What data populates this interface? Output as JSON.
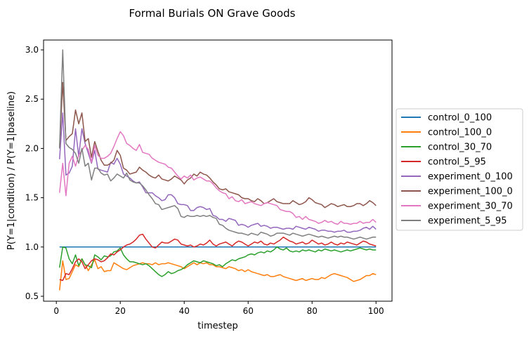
{
  "chart_data": {
    "type": "line",
    "title": "Formal Burials ON Grave Goods",
    "xlabel": "timestep",
    "ylabel": "P(Y=1|condition) / P(Y=1|baseline)",
    "xlim": [
      -4,
      105
    ],
    "ylim": [
      0.45,
      3.1
    ],
    "xticks": [
      0,
      20,
      40,
      60,
      80,
      100
    ],
    "yticks": [
      0.5,
      1.0,
      1.5,
      2.0,
      2.5,
      3.0
    ],
    "xtick_labels": [
      "0",
      "20",
      "40",
      "60",
      "80",
      "100"
    ],
    "ytick_labels": [
      "0.5",
      "1.0",
      "1.5",
      "2.0",
      "2.5",
      "3.0"
    ],
    "grid": false,
    "legend_position": "right, outside plot",
    "x": [
      1,
      2,
      3,
      4,
      5,
      6,
      7,
      8,
      9,
      10,
      11,
      12,
      13,
      14,
      15,
      16,
      17,
      18,
      19,
      20,
      21,
      22,
      23,
      24,
      25,
      26,
      27,
      28,
      29,
      30,
      31,
      32,
      33,
      34,
      35,
      36,
      37,
      38,
      39,
      40,
      41,
      42,
      43,
      44,
      45,
      46,
      47,
      48,
      49,
      50,
      51,
      52,
      53,
      54,
      55,
      56,
      57,
      58,
      59,
      60,
      61,
      62,
      63,
      64,
      65,
      66,
      67,
      68,
      69,
      70,
      71,
      72,
      73,
      74,
      75,
      76,
      77,
      78,
      79,
      80,
      81,
      82,
      83,
      84,
      85,
      86,
      87,
      88,
      89,
      90,
      91,
      92,
      93,
      94,
      95,
      96,
      97,
      98,
      99,
      100
    ],
    "series": [
      {
        "name": "control_0_100",
        "color": "#1f77b4",
        "values": [
          1.0,
          1.0,
          1.0,
          1.0,
          1.0,
          1.0,
          1.0,
          1.0,
          1.0,
          1.0,
          1.0,
          1.0,
          1.0,
          1.0,
          1.0,
          1.0,
          1.0,
          1.0,
          1.0,
          1.0,
          1.0,
          1.0,
          1.0,
          1.0,
          1.0,
          1.0,
          1.0,
          1.0,
          1.0,
          1.0,
          1.0,
          1.0,
          1.0,
          1.0,
          1.0,
          1.0,
          1.0,
          1.0,
          1.0,
          1.0,
          1.0,
          1.0,
          1.0,
          1.0,
          1.0,
          1.0,
          1.0,
          1.0,
          1.0,
          1.0,
          1.0,
          1.0,
          1.0,
          1.0,
          1.0,
          1.0,
          1.0,
          1.0,
          1.0,
          1.0,
          1.0,
          1.0,
          1.0,
          1.0,
          1.0,
          1.0,
          1.0,
          1.0,
          1.0,
          1.0,
          1.0,
          1.0,
          1.0,
          1.0,
          1.0,
          1.0,
          1.0,
          1.0,
          1.0,
          1.0,
          1.0,
          1.0,
          1.0,
          1.0,
          1.0,
          1.0,
          1.0,
          1.0,
          1.0,
          1.0,
          1.0,
          1.0,
          1.0,
          1.0,
          1.0,
          1.0,
          1.0,
          1.0,
          1.0,
          1.0
        ]
      },
      {
        "name": "control_100_0",
        "color": "#ff7f0e",
        "values": [
          0.56,
          0.86,
          0.67,
          0.68,
          0.75,
          0.82,
          0.8,
          0.88,
          0.82,
          0.76,
          0.82,
          0.87,
          0.78,
          0.8,
          0.75,
          0.76,
          0.76,
          0.84,
          0.82,
          0.8,
          0.78,
          0.77,
          0.79,
          0.81,
          0.82,
          0.83,
          0.84,
          0.83,
          0.83,
          0.82,
          0.84,
          0.82,
          0.83,
          0.83,
          0.84,
          0.83,
          0.82,
          0.81,
          0.8,
          0.78,
          0.8,
          0.82,
          0.84,
          0.82,
          0.84,
          0.83,
          0.84,
          0.82,
          0.82,
          0.8,
          0.8,
          0.79,
          0.78,
          0.8,
          0.79,
          0.78,
          0.76,
          0.77,
          0.75,
          0.77,
          0.75,
          0.74,
          0.73,
          0.72,
          0.71,
          0.72,
          0.7,
          0.7,
          0.71,
          0.72,
          0.7,
          0.69,
          0.68,
          0.67,
          0.66,
          0.67,
          0.68,
          0.66,
          0.67,
          0.68,
          0.67,
          0.67,
          0.69,
          0.68,
          0.7,
          0.72,
          0.73,
          0.72,
          0.71,
          0.7,
          0.69,
          0.67,
          0.65,
          0.66,
          0.67,
          0.69,
          0.71,
          0.71,
          0.73,
          0.72
        ]
      },
      {
        "name": "control_30_70",
        "color": "#2ca02c",
        "values": [
          0.79,
          1.0,
          0.99,
          0.88,
          0.83,
          0.92,
          0.81,
          0.88,
          0.82,
          0.81,
          0.79,
          0.92,
          0.9,
          0.87,
          0.91,
          0.9,
          0.91,
          0.95,
          0.96,
          0.99,
          0.92,
          0.88,
          0.85,
          0.85,
          0.84,
          0.83,
          0.82,
          0.83,
          0.81,
          0.78,
          0.75,
          0.72,
          0.7,
          0.72,
          0.75,
          0.73,
          0.74,
          0.76,
          0.77,
          0.79,
          0.82,
          0.84,
          0.86,
          0.85,
          0.84,
          0.86,
          0.85,
          0.84,
          0.83,
          0.81,
          0.82,
          0.8,
          0.83,
          0.85,
          0.87,
          0.86,
          0.88,
          0.89,
          0.9,
          0.92,
          0.93,
          0.92,
          0.94,
          0.95,
          0.94,
          0.96,
          0.95,
          0.97,
          1.0,
          0.98,
          0.97,
          0.99,
          0.96,
          0.95,
          0.96,
          0.95,
          0.97,
          0.96,
          0.97,
          0.96,
          0.95,
          0.97,
          0.96,
          0.98,
          0.97,
          0.96,
          0.97,
          0.96,
          0.95,
          0.96,
          0.97,
          0.96,
          0.97,
          0.98,
          0.99,
          0.98,
          0.97,
          0.98,
          0.97,
          0.97
        ]
      },
      {
        "name": "control_5_95",
        "color": "#d62728",
        "values": [
          0.67,
          0.66,
          0.73,
          0.72,
          0.78,
          0.85,
          0.88,
          0.85,
          0.78,
          0.82,
          0.86,
          0.88,
          0.87,
          0.85,
          0.86,
          0.89,
          0.93,
          0.92,
          0.95,
          0.97,
          1.0,
          1.02,
          1.03,
          1.05,
          1.08,
          1.12,
          1.13,
          1.08,
          1.04,
          1.0,
          0.99,
          1.02,
          1.05,
          1.04,
          1.04,
          1.06,
          1.08,
          1.07,
          1.03,
          1.02,
          1.01,
          1.02,
          1.0,
          1.01,
          1.03,
          1.02,
          1.04,
          1.07,
          1.03,
          1.01,
          1.03,
          1.04,
          1.05,
          1.03,
          1.01,
          1.04,
          1.06,
          1.05,
          1.03,
          1.01,
          1.03,
          1.05,
          1.04,
          1.06,
          1.03,
          1.02,
          1.04,
          1.03,
          1.05,
          1.07,
          1.1,
          1.08,
          1.06,
          1.05,
          1.03,
          1.04,
          1.05,
          1.03,
          1.04,
          1.07,
          1.05,
          1.03,
          1.04,
          1.02,
          1.03,
          1.05,
          1.03,
          1.02,
          1.04,
          1.03,
          1.05,
          1.04,
          1.03,
          1.02,
          1.04,
          1.06,
          1.05,
          1.03,
          1.02,
          1.01
        ]
      },
      {
        "name": "experiment_0_100",
        "color": "#9467bd",
        "values": [
          1.89,
          2.36,
          1.73,
          1.75,
          1.82,
          2.2,
          1.92,
          2.2,
          2.05,
          1.95,
          1.85,
          1.98,
          1.79,
          1.78,
          1.77,
          1.76,
          1.86,
          1.84,
          1.9,
          1.84,
          1.74,
          1.72,
          1.7,
          1.67,
          1.65,
          1.66,
          1.61,
          1.55,
          1.55,
          1.55,
          1.52,
          1.5,
          1.47,
          1.48,
          1.53,
          1.53,
          1.5,
          1.44,
          1.43,
          1.43,
          1.42,
          1.37,
          1.37,
          1.4,
          1.41,
          1.4,
          1.38,
          1.39,
          1.32,
          1.31,
          1.28,
          1.28,
          1.26,
          1.29,
          1.28,
          1.27,
          1.22,
          1.23,
          1.22,
          1.2,
          1.22,
          1.23,
          1.24,
          1.21,
          1.22,
          1.21,
          1.19,
          1.2,
          1.2,
          1.19,
          1.18,
          1.19,
          1.19,
          1.18,
          1.21,
          1.2,
          1.19,
          1.18,
          1.2,
          1.19,
          1.18,
          1.16,
          1.17,
          1.17,
          1.16,
          1.16,
          1.15,
          1.16,
          1.16,
          1.17,
          1.15,
          1.15,
          1.16,
          1.16,
          1.17,
          1.19,
          1.2,
          1.18,
          1.21,
          1.18
        ]
      },
      {
        "name": "experiment_100_0",
        "color": "#8c564b",
        "values": [
          2.0,
          2.67,
          2.08,
          2.12,
          2.15,
          2.39,
          2.25,
          2.36,
          2.07,
          2.1,
          1.91,
          2.07,
          1.97,
          1.88,
          1.83,
          1.83,
          1.85,
          1.88,
          1.98,
          1.93,
          1.8,
          1.78,
          1.74,
          1.75,
          1.76,
          1.81,
          1.78,
          1.76,
          1.73,
          1.71,
          1.7,
          1.73,
          1.69,
          1.68,
          1.67,
          1.69,
          1.72,
          1.7,
          1.68,
          1.64,
          1.68,
          1.7,
          1.74,
          1.72,
          1.76,
          1.74,
          1.73,
          1.7,
          1.66,
          1.63,
          1.59,
          1.58,
          1.59,
          1.56,
          1.55,
          1.54,
          1.53,
          1.5,
          1.49,
          1.49,
          1.47,
          1.46,
          1.49,
          1.47,
          1.44,
          1.45,
          1.47,
          1.49,
          1.46,
          1.45,
          1.44,
          1.44,
          1.44,
          1.47,
          1.45,
          1.43,
          1.44,
          1.46,
          1.5,
          1.48,
          1.45,
          1.44,
          1.43,
          1.4,
          1.42,
          1.44,
          1.43,
          1.41,
          1.42,
          1.43,
          1.41,
          1.41,
          1.42,
          1.44,
          1.44,
          1.42,
          1.44,
          1.47,
          1.45,
          1.42
        ]
      },
      {
        "name": "experiment_30_70",
        "color": "#e377c2",
        "values": [
          1.55,
          1.85,
          1.52,
          1.85,
          1.92,
          1.82,
          1.93,
          1.98,
          2.03,
          1.99,
          1.86,
          2.03,
          1.93,
          1.9,
          1.9,
          1.92,
          1.95,
          2.02,
          2.1,
          2.17,
          2.13,
          2.05,
          2.03,
          2.0,
          1.98,
          2.04,
          1.96,
          1.95,
          1.94,
          1.9,
          1.88,
          1.86,
          1.85,
          1.84,
          1.81,
          1.8,
          1.76,
          1.72,
          1.69,
          1.72,
          1.7,
          1.73,
          1.68,
          1.7,
          1.71,
          1.69,
          1.67,
          1.67,
          1.64,
          1.6,
          1.57,
          1.55,
          1.54,
          1.49,
          1.51,
          1.47,
          1.46,
          1.48,
          1.44,
          1.45,
          1.46,
          1.44,
          1.43,
          1.42,
          1.44,
          1.45,
          1.44,
          1.43,
          1.42,
          1.38,
          1.37,
          1.36,
          1.36,
          1.34,
          1.3,
          1.31,
          1.28,
          1.31,
          1.28,
          1.27,
          1.26,
          1.24,
          1.25,
          1.27,
          1.25,
          1.26,
          1.24,
          1.23,
          1.26,
          1.24,
          1.24,
          1.23,
          1.24,
          1.24,
          1.26,
          1.24,
          1.25,
          1.25,
          1.28,
          1.25
        ]
      },
      {
        "name": "experiment_5_95",
        "color": "#7f7f7f",
        "values": [
          2.0,
          3.0,
          2.05,
          2.01,
          1.99,
          1.95,
          1.85,
          2.0,
          1.82,
          1.85,
          1.68,
          1.8,
          1.8,
          1.75,
          1.73,
          1.74,
          1.67,
          1.7,
          1.74,
          1.72,
          1.7,
          1.75,
          1.68,
          1.66,
          1.65,
          1.65,
          1.62,
          1.58,
          1.53,
          1.49,
          1.44,
          1.43,
          1.38,
          1.39,
          1.4,
          1.41,
          1.42,
          1.39,
          1.31,
          1.3,
          1.32,
          1.31,
          1.31,
          1.32,
          1.31,
          1.32,
          1.31,
          1.32,
          1.3,
          1.29,
          1.23,
          1.22,
          1.19,
          1.17,
          1.16,
          1.15,
          1.14,
          1.14,
          1.13,
          1.12,
          1.14,
          1.13,
          1.12,
          1.15,
          1.14,
          1.13,
          1.11,
          1.12,
          1.14,
          1.14,
          1.14,
          1.13,
          1.12,
          1.14,
          1.13,
          1.12,
          1.11,
          1.12,
          1.13,
          1.12,
          1.11,
          1.1,
          1.11,
          1.1,
          1.09,
          1.1,
          1.11,
          1.1,
          1.11,
          1.1,
          1.1,
          1.09,
          1.08,
          1.09,
          1.1,
          1.09,
          1.08,
          1.09,
          1.1,
          1.1
        ]
      }
    ]
  }
}
